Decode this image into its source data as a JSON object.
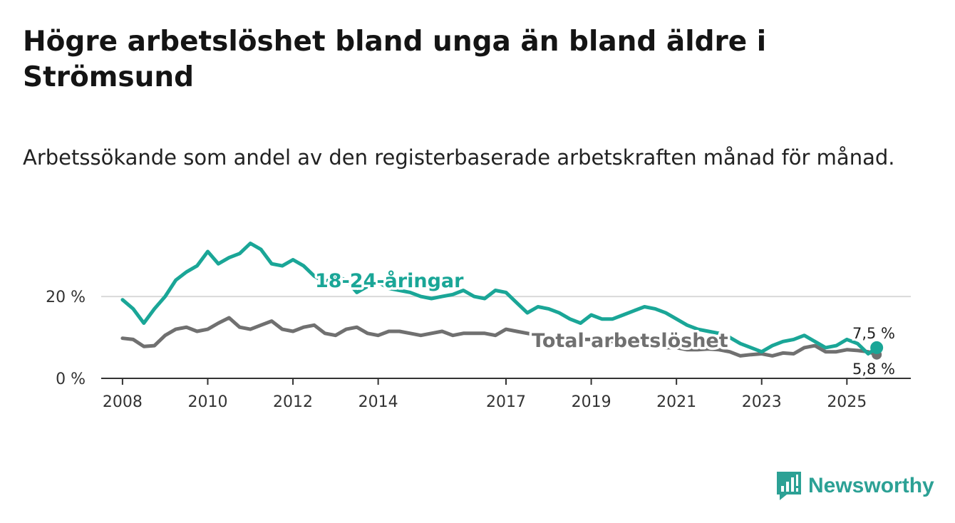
{
  "title": "Högre arbetslöshet bland unga än bland äldre i Strömsund",
  "subtitle": "Arbetssökande som andel av den registerbaserade arbetskraften månad för månad.",
  "brand": "Newsworthy",
  "colors": {
    "youth": "#1aa697",
    "total": "#707070",
    "brand": "#2ca195"
  },
  "chart_data": {
    "type": "line",
    "x_ticks": [
      "2008",
      "2010",
      "2012",
      "2014",
      "2017",
      "2019",
      "2021",
      "2023",
      "2025"
    ],
    "y_ticks": [
      "0 %",
      "20 %"
    ],
    "ylim": [
      0,
      35
    ],
    "xlim": [
      2007.5,
      2026.5
    ],
    "grid": true,
    "series": [
      {
        "name": "18-24-åringar",
        "end_label": "7,5 %",
        "x": [
          2008.0,
          2008.25,
          2008.5,
          2008.75,
          2009.0,
          2009.25,
          2009.5,
          2009.75,
          2010.0,
          2010.25,
          2010.5,
          2010.75,
          2011.0,
          2011.25,
          2011.5,
          2011.75,
          2012.0,
          2012.25,
          2012.5,
          2012.75,
          2013.0,
          2013.25,
          2013.5,
          2013.75,
          2014.0,
          2014.25,
          2014.5,
          2014.75,
          2015.0,
          2015.25,
          2015.5,
          2015.75,
          2016.0,
          2016.25,
          2016.5,
          2016.75,
          2017.0,
          2017.25,
          2017.5,
          2017.75,
          2018.0,
          2018.25,
          2018.5,
          2018.75,
          2019.0,
          2019.25,
          2019.5,
          2019.75,
          2020.0,
          2020.25,
          2020.5,
          2020.75,
          2021.0,
          2021.25,
          2021.5,
          2021.75,
          2022.0,
          2022.25,
          2022.5,
          2022.75,
          2023.0,
          2023.25,
          2023.5,
          2023.75,
          2024.0,
          2024.25,
          2024.5,
          2024.75,
          2025.0,
          2025.25,
          2025.5,
          2025.7
        ],
        "values": [
          19.2,
          17.0,
          13.5,
          17.0,
          20.0,
          24.0,
          26.0,
          27.5,
          31.0,
          28.0,
          29.5,
          30.5,
          33.0,
          31.5,
          28.0,
          27.5,
          29.0,
          27.5,
          25.0,
          23.5,
          25.0,
          24.0,
          21.0,
          22.5,
          23.5,
          22.0,
          21.5,
          21.0,
          20.0,
          19.5,
          20.0,
          20.5,
          21.5,
          20.0,
          19.5,
          21.5,
          21.0,
          18.5,
          16.0,
          17.5,
          17.0,
          16.0,
          14.5,
          13.5,
          15.5,
          14.5,
          14.5,
          15.5,
          16.5,
          17.5,
          17.0,
          16.0,
          14.5,
          13.0,
          12.0,
          11.5,
          11.0,
          10.0,
          8.5,
          7.5,
          6.5,
          8.0,
          9.0,
          9.5,
          10.5,
          9.0,
          7.5,
          8.0,
          9.5,
          8.5,
          6.0,
          7.5
        ]
      },
      {
        "name": "Total arbetslöshet",
        "end_label": "5,8 %",
        "x": [
          2008.0,
          2008.25,
          2008.5,
          2008.75,
          2009.0,
          2009.25,
          2009.5,
          2009.75,
          2010.0,
          2010.25,
          2010.5,
          2010.75,
          2011.0,
          2011.25,
          2011.5,
          2011.75,
          2012.0,
          2012.25,
          2012.5,
          2012.75,
          2013.0,
          2013.25,
          2013.5,
          2013.75,
          2014.0,
          2014.25,
          2014.5,
          2014.75,
          2015.0,
          2015.25,
          2015.5,
          2015.75,
          2016.0,
          2016.25,
          2016.5,
          2016.75,
          2017.0,
          2017.25,
          2017.5,
          2017.75,
          2018.0,
          2018.25,
          2018.5,
          2018.75,
          2019.0,
          2019.25,
          2019.5,
          2019.75,
          2020.0,
          2020.25,
          2020.5,
          2020.75,
          2021.0,
          2021.25,
          2021.5,
          2021.75,
          2022.0,
          2022.25,
          2022.5,
          2022.75,
          2023.0,
          2023.25,
          2023.5,
          2023.75,
          2024.0,
          2024.25,
          2024.5,
          2024.75,
          2025.0,
          2025.25,
          2025.5,
          2025.7
        ],
        "values": [
          9.8,
          9.5,
          7.8,
          8.0,
          10.5,
          12.0,
          12.5,
          11.5,
          12.0,
          13.5,
          14.8,
          12.5,
          12.0,
          13.0,
          14.0,
          12.0,
          11.5,
          12.5,
          13.0,
          11.0,
          10.5,
          12.0,
          12.5,
          11.0,
          10.5,
          11.5,
          11.5,
          11.0,
          10.5,
          11.0,
          11.5,
          10.5,
          11.0,
          11.0,
          11.0,
          10.5,
          12.0,
          11.5,
          11.0,
          10.5,
          10.0,
          10.0,
          9.5,
          9.5,
          9.5,
          9.0,
          9.0,
          9.0,
          8.5,
          8.5,
          8.0,
          7.5,
          7.5,
          7.0,
          7.0,
          7.2,
          7.0,
          6.5,
          5.5,
          5.8,
          6.0,
          5.5,
          6.2,
          6.0,
          7.5,
          8.0,
          6.5,
          6.5,
          7.0,
          6.8,
          6.5,
          5.8
        ]
      }
    ]
  }
}
